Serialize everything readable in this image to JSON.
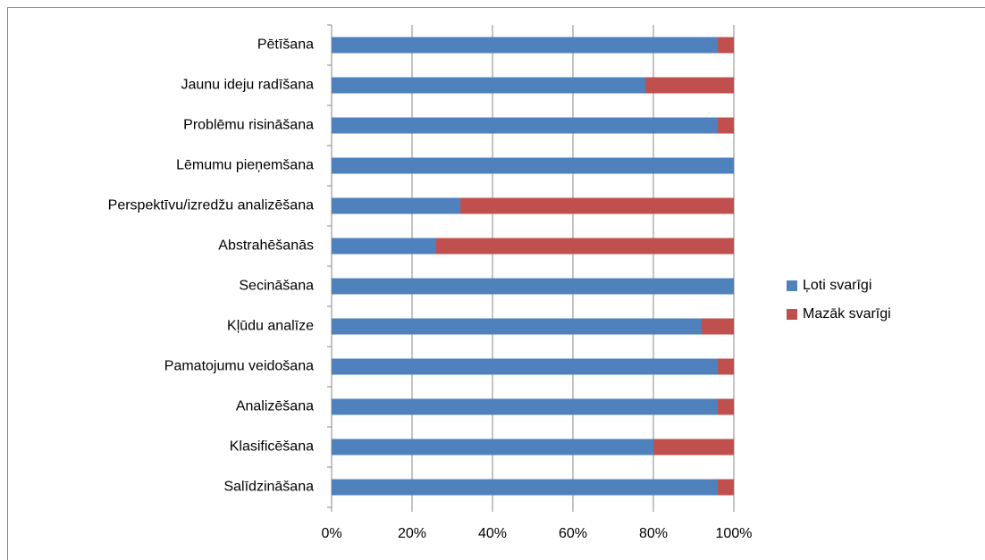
{
  "chart_data": {
    "type": "stacked_bar_horizontal_percent",
    "categories": [
      "Pētīšana",
      "Jaunu ideju radīšana",
      "Problēmu risināšana",
      "Lēmumu pieņemšana",
      "Perspektīvu/izredžu analizēšana",
      "Abstrahēšanās",
      "Secināšana",
      "Kļūdu analīze",
      "Pamatojumu veidošana",
      "Analizēšana",
      "Klasificēšana",
      "Salīdzināšana"
    ],
    "series": [
      {
        "name": "Ļoti svarīgi",
        "color": "#4f81bd",
        "values": [
          96,
          78,
          96,
          100,
          32,
          26,
          100,
          92,
          96,
          96,
          80,
          96
        ]
      },
      {
        "name": "Mazāk svarīgi",
        "color": "#c0504d",
        "values": [
          4,
          22,
          4,
          0,
          68,
          74,
          0,
          8,
          4,
          4,
          20,
          4
        ]
      }
    ],
    "xlim": [
      0,
      100
    ],
    "xticks": [
      {
        "value": 0,
        "label": "0%"
      },
      {
        "value": 20,
        "label": "20%"
      },
      {
        "value": 40,
        "label": "40%"
      },
      {
        "value": 60,
        "label": "60%"
      },
      {
        "value": 80,
        "label": "80%"
      },
      {
        "value": 100,
        "label": "100%"
      }
    ],
    "grid": true,
    "legend": "right"
  }
}
